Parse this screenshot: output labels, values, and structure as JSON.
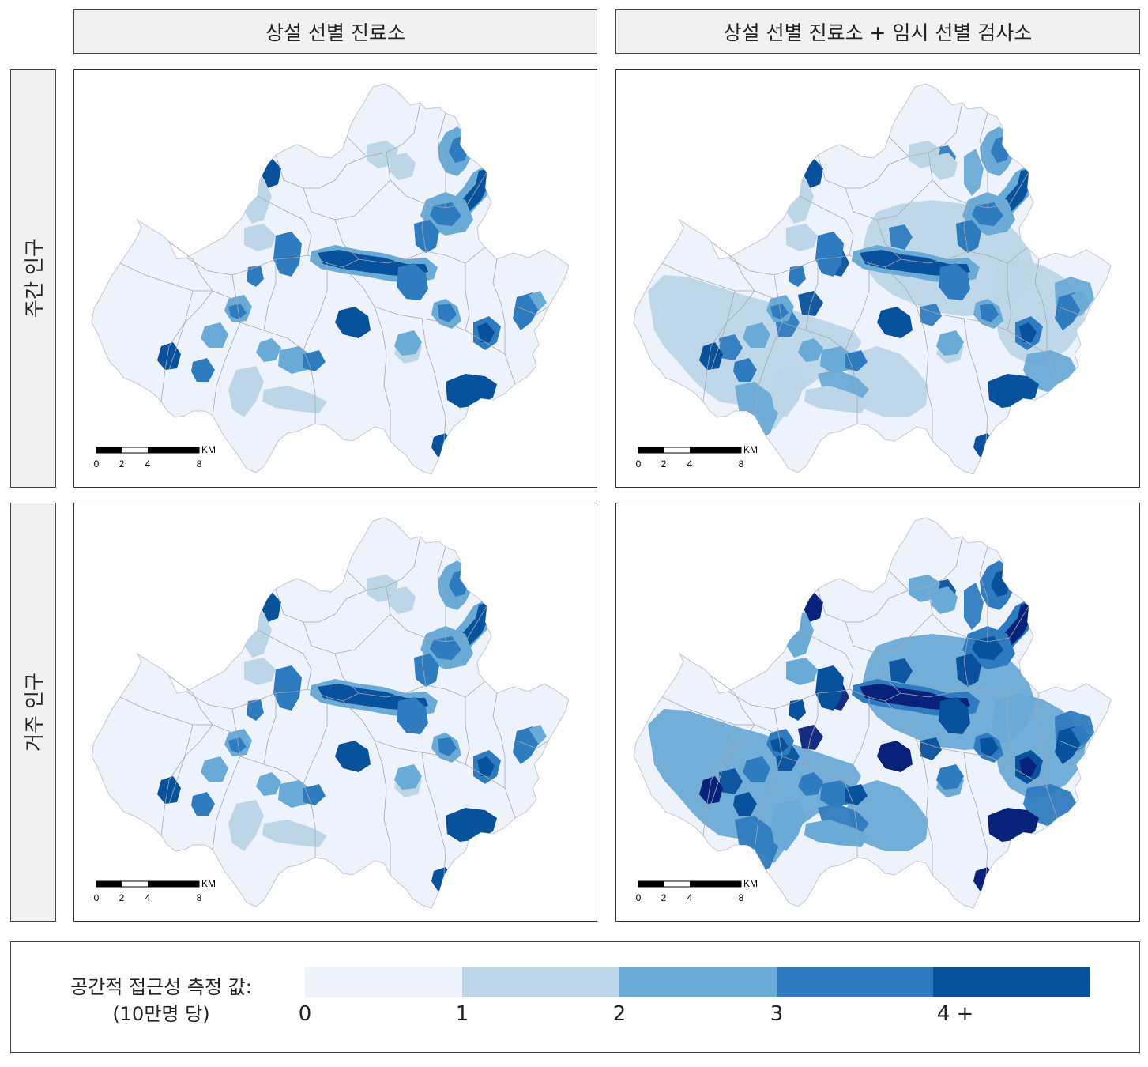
{
  "columns": [
    {
      "label": "상설 선별 진료소"
    },
    {
      "label": "상설 선별 진료소 + 임시 선별 검사소"
    }
  ],
  "rows": [
    {
      "label": "주간 인구"
    },
    {
      "label": "거주 인구"
    }
  ],
  "scalebar": {
    "ticks": [
      "0",
      "2",
      "4",
      "8"
    ],
    "unit": "KM"
  },
  "legend": {
    "title_line1": "공간적 접근성 측정 값:",
    "title_line2": "(10만명 당)",
    "bins": [
      {
        "color": "#eef2fb"
      },
      {
        "color": "#bcd6e8"
      },
      {
        "color": "#6aaad6"
      },
      {
        "color": "#2f7bbf"
      },
      {
        "color": "#08519c"
      }
    ],
    "tick_labels": [
      "0",
      "1",
      "2",
      "3",
      "4 +"
    ]
  },
  "colors": {
    "base": "#eef2fb",
    "low": "#bcd6e8",
    "mid": "#6aaad6",
    "high": "#2f7bbf",
    "top": "#08519c",
    "max_navy": "#08217a",
    "boundary": "#a3a8b2"
  }
}
